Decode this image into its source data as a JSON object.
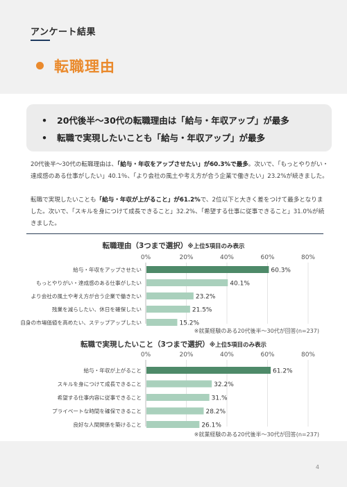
{
  "header": {
    "section": "アンケート結果",
    "title": "転職理由"
  },
  "summary": [
    "20代後半〜30代の転職理由は「給与・年収アップ」が最多",
    "転職で実現したいことも「給与・年収アップ」が最多"
  ],
  "bullet": "•",
  "para1": {
    "t1": "20代後半〜30代の転職理由は、",
    "b1": "「給与・年収をアップさせたい」が60.3%で最多",
    "t2": "。次いで、「もっとやりがい・達成感のある仕事がしたい」40.1％、「より会社の風土や考え方が合う企業で働きたい」23.2%が続きました。"
  },
  "para2": {
    "t1": "転職で実現したいことも",
    "b1": "「給与・年収が上がること」が61.2%",
    "t2": "で、2位以下と大きく差をつけて最多となりました。次いで、「スキルを身につけて成長できること」32.2%、「希望する仕事に従事できること」31.0%が続きました。"
  },
  "chart1": {
    "title": "転職理由（3つまで選択）",
    "note": "※上位5項目のみ表示",
    "source": "※就業経験のある20代後半〜30代が回答(n=237)"
  },
  "chart2": {
    "title": "転職で実現したいこと（3つまで選択）",
    "note": "※上位5項目のみ表示",
    "source": "※就業経験のある20代後半〜30代が回答(n=237)"
  },
  "chart_data": [
    {
      "type": "bar",
      "orientation": "horizontal",
      "title": "転職理由（3つまで選択）",
      "categories": [
        "給与・年収をアップさせたい",
        "もっとやりがい・達成感のある仕事がしたい",
        "より会社の風土や考え方が合う企業で働きたい",
        "残業を減らしたい、休日を確保したい",
        "自身の市場価値を高めたい、ステップアップしたい"
      ],
      "values": [
        60.3,
        40.1,
        23.2,
        21.5,
        15.2
      ],
      "value_labels": [
        "60.3%",
        "40.1%",
        "23.2%",
        "21.5%",
        "15.2%"
      ],
      "xticks": [
        "0%",
        "20%",
        "40%",
        "60%",
        "80%"
      ],
      "xlim": [
        0,
        80
      ],
      "colors": {
        "highlight": "#4e8a69",
        "normal": "#a9d0bc"
      }
    },
    {
      "type": "bar",
      "orientation": "horizontal",
      "title": "転職で実現したいこと（3つまで選択）",
      "categories": [
        "給与・年収が上がること",
        "スキルを身につけて成長できること",
        "希望する仕事内容に従事できること",
        "プライベートな時間を確保できること",
        "良好な人間関係を築けること"
      ],
      "values": [
        61.2,
        32.2,
        31.0,
        28.2,
        26.1
      ],
      "value_labels": [
        "61.2%",
        "32.2%",
        "31.%",
        "28.2%",
        "26.1%"
      ],
      "xticks": [
        "0%",
        "20%",
        "40%",
        "60%",
        "80%"
      ],
      "xlim": [
        0,
        80
      ],
      "colors": {
        "highlight": "#4e8a69",
        "normal": "#a9d0bc"
      }
    }
  ],
  "page_number": "4"
}
